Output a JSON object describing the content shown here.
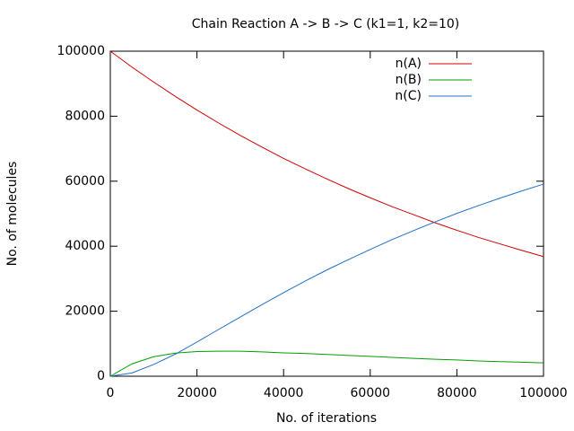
{
  "chart_data": {
    "type": "line",
    "title": "Chain Reaction A -> B -> C (k1=1, k2=10)",
    "x_label": "No. of iterations",
    "y_label": "No. of molecules",
    "x": [
      0,
      5000,
      10000,
      15000,
      20000,
      25000,
      30000,
      35000,
      40000,
      45000,
      50000,
      55000,
      60000,
      65000,
      70000,
      75000,
      80000,
      85000,
      90000,
      95000,
      100000
    ],
    "series": [
      {
        "name": "n(A)",
        "color": "#d00000",
        "values": [
          100000,
          95100,
          90500,
          86100,
          81900,
          77900,
          74100,
          70500,
          67000,
          63800,
          60700,
          57700,
          54900,
          52200,
          49700,
          47200,
          44900,
          42700,
          40700,
          38700,
          36800
        ]
      },
      {
        "name": "n(B)",
        "color": "#00a000",
        "values": [
          0,
          3800,
          6000,
          7100,
          7600,
          7700,
          7700,
          7500,
          7200,
          7000,
          6700,
          6400,
          6100,
          5800,
          5500,
          5200,
          5000,
          4700,
          4500,
          4300,
          4100
        ]
      },
      {
        "name": "n(C)",
        "color": "#1f70c8",
        "values": [
          0,
          1000,
          3600,
          6800,
          10500,
          14400,
          18200,
          22000,
          25700,
          29300,
          32700,
          35900,
          39000,
          42000,
          44800,
          47500,
          50100,
          52500,
          54800,
          57000,
          59100
        ]
      }
    ],
    "xlim": [
      0,
      100000
    ],
    "xticks": [
      0,
      20000,
      40000,
      60000,
      80000,
      100000
    ],
    "ylim": [
      0,
      100000
    ],
    "yticks": [
      0,
      20000,
      40000,
      60000,
      80000,
      100000
    ],
    "grid": false,
    "legend": "top-right"
  }
}
